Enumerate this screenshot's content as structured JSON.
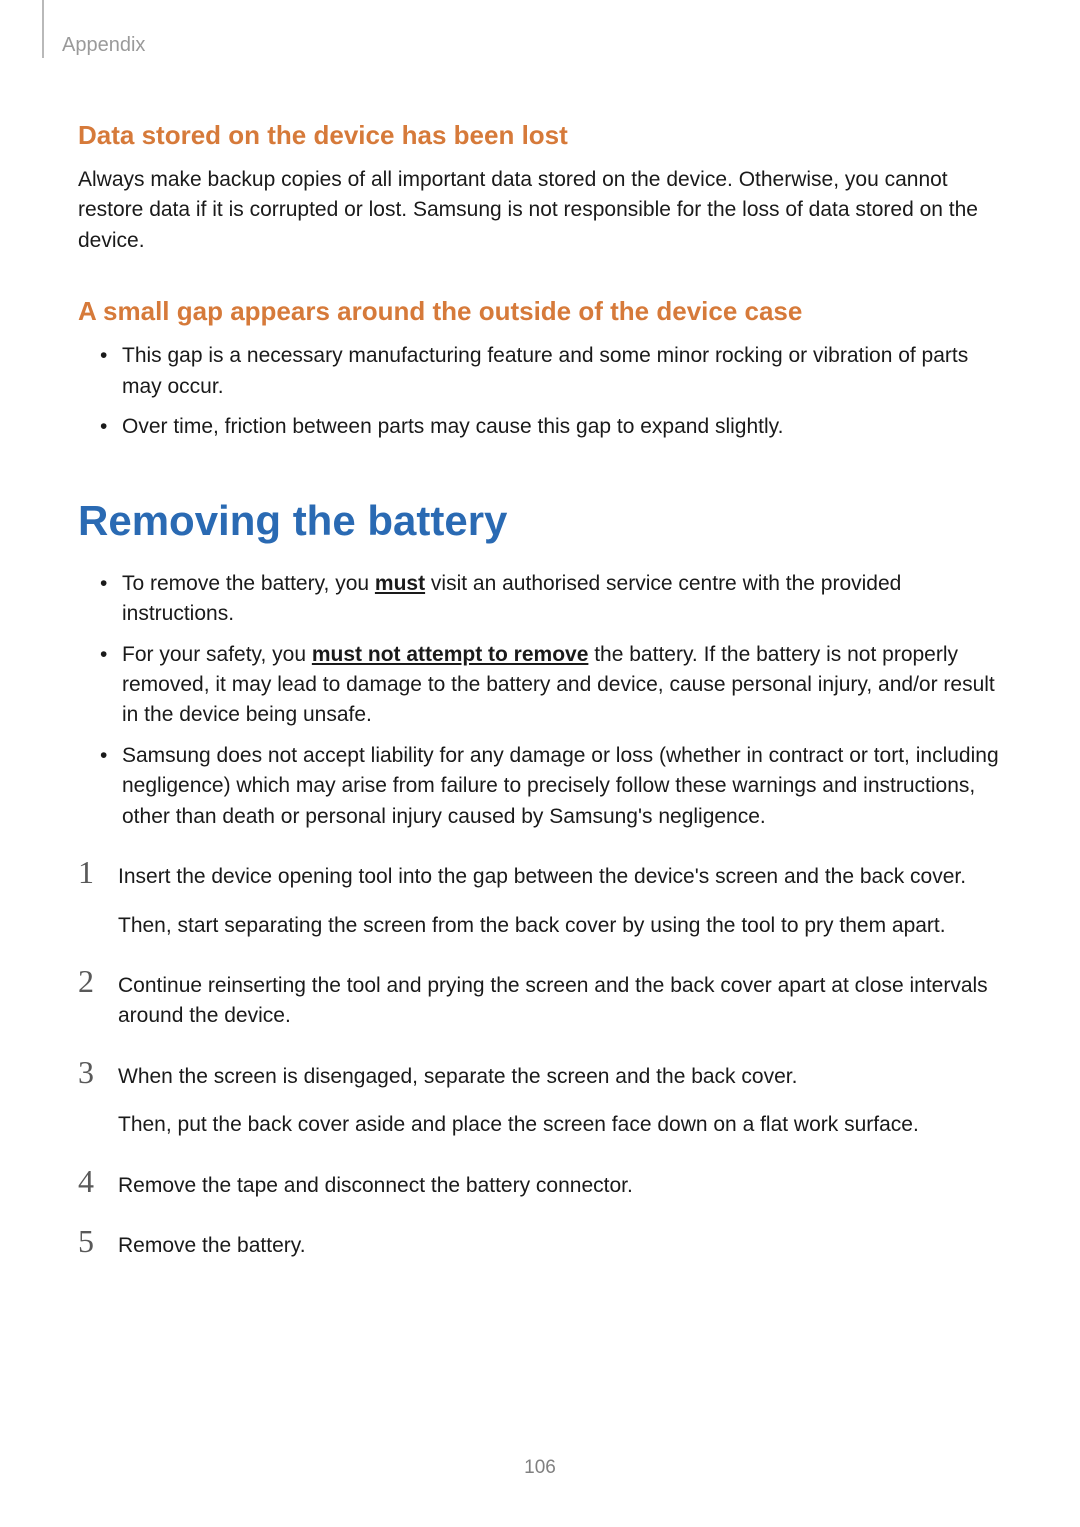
{
  "header": {
    "section_label": "Appendix"
  },
  "sections": {
    "s1": {
      "heading": "Data stored on the device has been lost",
      "body": "Always make backup copies of all important data stored on the device. Otherwise, you cannot restore data if it is corrupted or lost. Samsung is not responsible for the loss of data stored on the device."
    },
    "s2": {
      "heading": "A small gap appears around the outside of the device case",
      "bullets": {
        "b0": "This gap is a necessary manufacturing feature and some minor rocking or vibration of parts may occur.",
        "b1": "Over time, friction between parts may cause this gap to expand slightly."
      }
    },
    "main": {
      "heading": "Removing the battery",
      "bullets": {
        "b0_pre": "To remove the battery, you ",
        "b0_emph": "must",
        "b0_post": " visit an authorised service centre with the provided instructions.",
        "b1_pre": "For your safety, you ",
        "b1_emph": "must not attempt to remove",
        "b1_post": " the battery. If the battery is not properly removed, it may lead to damage to the battery and device, cause personal injury, and/or result in the device being unsafe.",
        "b2": "Samsung does not accept liability for any damage or loss (whether in contract or tort, including negligence) which may arise from failure to precisely follow these warnings and instructions, other than death or personal injury caused by Samsung's negligence."
      },
      "steps": {
        "n1": "1",
        "t1a": "Insert the device opening tool into the gap between the device's screen and the back cover.",
        "t1b": "Then, start separating the screen from the back cover by using the tool to pry them apart.",
        "n2": "2",
        "t2": "Continue reinserting the tool and prying the screen and the back cover apart at close intervals around the device.",
        "n3": "3",
        "t3a": "When the screen is disengaged, separate the screen and the back cover.",
        "t3b": "Then, put the back cover aside and place the screen face down on a flat work surface.",
        "n4": "4",
        "t4": "Remove the tape and disconnect the battery connector.",
        "n5": "5",
        "t5": "Remove the battery."
      }
    }
  },
  "page_number": "106",
  "colors": {
    "subheading": "#d67a3a",
    "main_heading": "#2a6ab3",
    "body_text": "#1a1a1a",
    "header_label": "#9a9a9a",
    "header_rule": "#b9b9b9",
    "step_number": "#595959",
    "page_number": "#808080",
    "background": "#ffffff"
  },
  "typography": {
    "subheading_fontsize": 26,
    "main_heading_fontsize": 42,
    "body_fontsize": 21,
    "header_label_fontsize": 20,
    "step_number_fontsize": 32,
    "page_number_fontsize": 19,
    "line_height": 1.45
  }
}
